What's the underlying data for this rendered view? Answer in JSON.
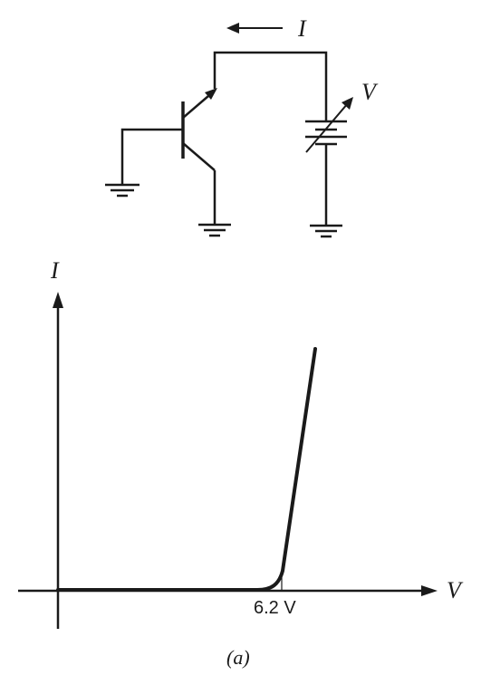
{
  "circuit": {
    "current_label": "I",
    "voltage_source_label": "V"
  },
  "graph": {
    "y_axis_label": "I",
    "x_axis_label": "V",
    "breakdown_tick_label": "6.2 V"
  },
  "figure": {
    "caption": "(a)"
  },
  "chart_data": {
    "type": "line",
    "title": "",
    "xlabel": "V",
    "ylabel": "I",
    "annotations": [
      "6.2 V"
    ],
    "series": [
      {
        "x": [
          0,
          5.8,
          6.2,
          6.45,
          7.0
        ],
        "y": [
          0,
          0,
          0.06,
          0.45,
          1.0
        ]
      }
    ]
  },
  "colors": {
    "ink": "#1a1a1a",
    "background": "#ffffff"
  }
}
